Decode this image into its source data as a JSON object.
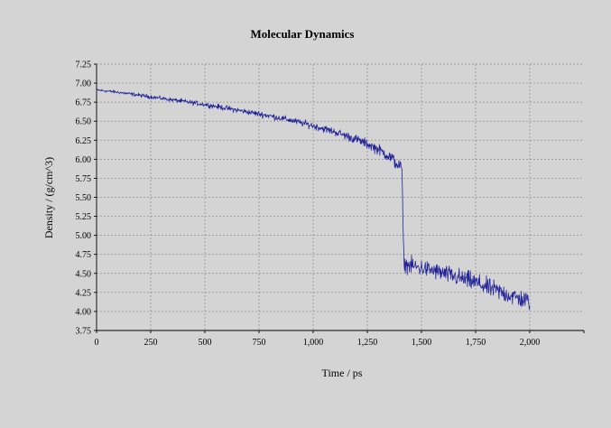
{
  "colors": {
    "background": "#d4d4d4",
    "series": "#24249a",
    "grid": "#8a8a8a"
  },
  "chart_data": {
    "type": "line",
    "title": "Molecular Dynamics",
    "xlabel": "Time / ps",
    "ylabel": "Density / (g/cm^3)",
    "xlim": [
      0,
      2250
    ],
    "ylim": [
      3.75,
      7.25
    ],
    "x_ticks": [
      0,
      250,
      500,
      750,
      1000,
      1250,
      1500,
      1750,
      2000
    ],
    "x_tick_labels": [
      "0",
      "250",
      "500",
      "750",
      "1,000",
      "1,250",
      "1,500",
      "1,750",
      "2,000"
    ],
    "y_ticks": [
      3.75,
      4.0,
      4.25,
      4.5,
      4.75,
      5.0,
      5.25,
      5.5,
      5.75,
      6.0,
      6.25,
      6.5,
      6.75,
      7.0,
      7.25
    ],
    "y_tick_labels": [
      "3.75",
      "4.00",
      "4.25",
      "4.50",
      "4.75",
      "5.00",
      "5.25",
      "5.50",
      "5.75",
      "6.00",
      "6.25",
      "6.50",
      "6.75",
      "7.00",
      "7.25"
    ],
    "grid": true,
    "legend": "none",
    "series": [
      {
        "x": [
          0,
          100,
          200,
          300,
          400,
          500,
          600,
          700,
          800,
          900,
          1000,
          1100,
          1200,
          1250,
          1300,
          1350,
          1380,
          1400,
          1410,
          1415,
          1420,
          1450,
          1500,
          1550,
          1600,
          1650,
          1700,
          1750,
          1800,
          1850,
          1900,
          1950,
          2000
        ],
        "values": [
          6.91,
          6.88,
          6.84,
          6.8,
          6.76,
          6.72,
          6.67,
          6.62,
          6.57,
          6.51,
          6.44,
          6.36,
          6.26,
          6.2,
          6.13,
          6.04,
          5.96,
          5.9,
          5.88,
          5.1,
          4.62,
          4.6,
          4.57,
          4.54,
          4.5,
          4.46,
          4.42,
          4.38,
          4.32,
          4.27,
          4.22,
          4.17,
          4.13
        ],
        "noise_amplitude": [
          0.02,
          0.02,
          0.025,
          0.025,
          0.03,
          0.03,
          0.035,
          0.035,
          0.04,
          0.04,
          0.045,
          0.05,
          0.06,
          0.06,
          0.07,
          0.08,
          0.09,
          0.09,
          0.09,
          0.0,
          0.1,
          0.11,
          0.11,
          0.11,
          0.11,
          0.12,
          0.12,
          0.12,
          0.12,
          0.12,
          0.12,
          0.12,
          0.12
        ]
      }
    ]
  }
}
